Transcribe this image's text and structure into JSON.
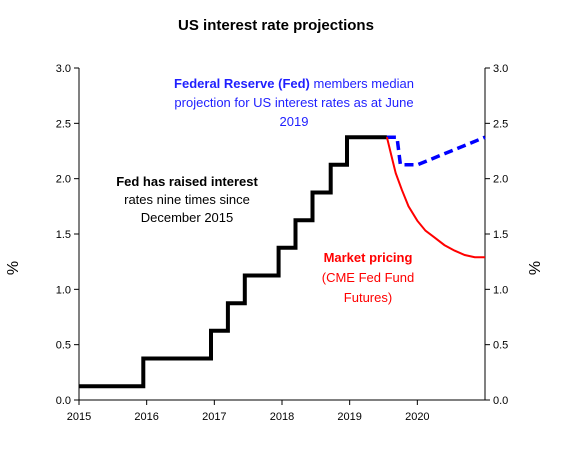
{
  "chart_data": {
    "type": "line",
    "title": "US interest rate projections",
    "ylabel_left": "%",
    "ylabel_right": "%",
    "ylim": [
      0,
      3
    ],
    "xlim": [
      2015,
      2021
    ],
    "y_ticks_left": [
      "0.0",
      "0.5",
      "1.0",
      "1.5",
      "2.0",
      "2.5",
      "3.0"
    ],
    "y_ticks_right": [
      "0.0",
      "0.5",
      "1.0",
      "1.5",
      "2.0",
      "2.5",
      "3.0"
    ],
    "x_ticks": [
      "2015",
      "2016",
      "2017",
      "2018",
      "2019",
      "2020"
    ],
    "grid": false,
    "series": [
      {
        "name": "Fed has raised interest rates nine times since December 2015",
        "color": "#000000",
        "style": "step",
        "points": [
          [
            2015.0,
            0.125
          ],
          [
            2015.95,
            0.125
          ],
          [
            2015.95,
            0.375
          ],
          [
            2016.95,
            0.375
          ],
          [
            2016.95,
            0.625
          ],
          [
            2017.2,
            0.625
          ],
          [
            2017.2,
            0.875
          ],
          [
            2017.45,
            0.875
          ],
          [
            2017.45,
            1.125
          ],
          [
            2017.95,
            1.125
          ],
          [
            2017.95,
            1.375
          ],
          [
            2018.2,
            1.375
          ],
          [
            2018.2,
            1.625
          ],
          [
            2018.45,
            1.625
          ],
          [
            2018.45,
            1.875
          ],
          [
            2018.72,
            1.875
          ],
          [
            2018.72,
            2.125
          ],
          [
            2018.96,
            2.125
          ],
          [
            2018.96,
            2.375
          ],
          [
            2019.55,
            2.375
          ]
        ]
      },
      {
        "name": "Federal Reserve (Fed) members median projection for US interest rates as at June 2019",
        "color": "#0000ff",
        "style": "dashed",
        "points": [
          [
            2019.55,
            2.375
          ],
          [
            2019.7,
            2.375
          ],
          [
            2019.75,
            2.125
          ],
          [
            2020.0,
            2.125
          ],
          [
            2020.5,
            2.25
          ],
          [
            2021.0,
            2.375
          ]
        ]
      },
      {
        "name": "Market pricing (CME Fed Fund Futures)",
        "color": "#ff0000",
        "style": "solid",
        "points": [
          [
            2019.55,
            2.375
          ],
          [
            2019.62,
            2.2
          ],
          [
            2019.68,
            2.05
          ],
          [
            2019.77,
            1.9
          ],
          [
            2019.87,
            1.75
          ],
          [
            2020.0,
            1.62
          ],
          [
            2020.12,
            1.53
          ],
          [
            2020.25,
            1.47
          ],
          [
            2020.4,
            1.4
          ],
          [
            2020.55,
            1.35
          ],
          [
            2020.7,
            1.31
          ],
          [
            2020.85,
            1.29
          ],
          [
            2021.0,
            1.29
          ]
        ]
      }
    ],
    "annotations": {
      "fed_projection": {
        "lines": [
          [
            {
              "t": "Federal Reserve (Fed)",
              "bold": true
            },
            {
              "t": " members median",
              "bold": false
            }
          ],
          [
            {
              "t": "projection for US interest rates as at June",
              "bold": false
            }
          ],
          [
            {
              "t": "2019",
              "bold": false
            }
          ]
        ],
        "color": "#1f1fff"
      },
      "fed_raised": {
        "lines": [
          [
            {
              "t": "Fed has raised interest",
              "bold": true
            }
          ],
          [
            {
              "t": "rates nine times since",
              "bold": false
            }
          ],
          [
            {
              "t": "December 2015",
              "bold": false
            }
          ]
        ],
        "color": "#000000"
      },
      "market": {
        "lines": [
          [
            {
              "t": "Market pricing",
              "bold": true
            }
          ],
          [
            {
              "t": "(CME Fed Fund",
              "bold": false
            }
          ],
          [
            {
              "t": "Futures)",
              "bold": false
            }
          ]
        ],
        "color": "#ff0000"
      }
    }
  }
}
